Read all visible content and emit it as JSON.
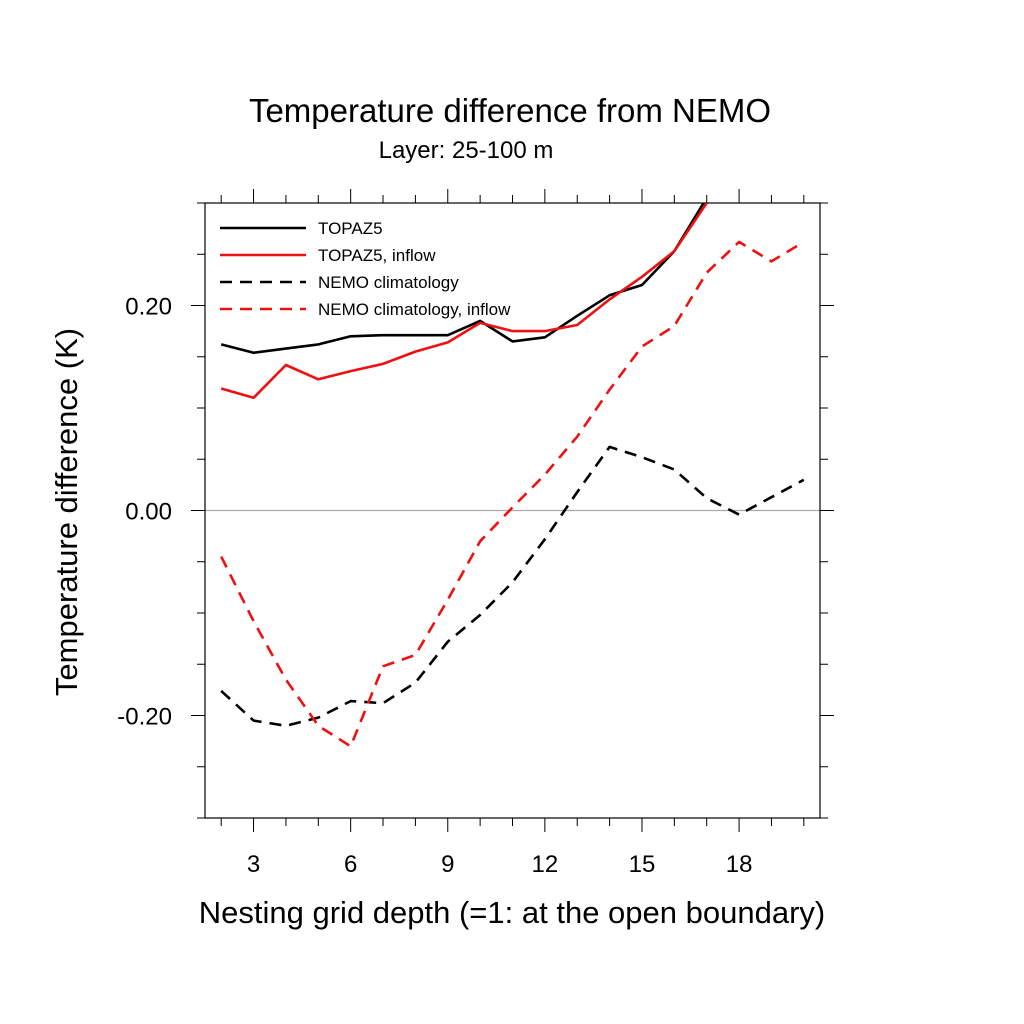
{
  "chart_data": {
    "type": "line",
    "title": "Temperature difference from NEMO",
    "subtitle": "Layer: 25-100 m",
    "xlabel": "Nesting grid depth (=1: at the open boundary)",
    "ylabel": "Temperature difference (K)",
    "xlim": [
      1.5,
      20.5
    ],
    "ylim": [
      -0.3,
      0.3
    ],
    "xticks": [
      3,
      6,
      9,
      12,
      15,
      18
    ],
    "xtick_labels": [
      "3",
      "6",
      "9",
      "12",
      "15",
      "18"
    ],
    "yticks": [
      -0.2,
      0.0,
      0.2
    ],
    "ytick_labels": [
      "-0.20",
      "0.00",
      "0.20"
    ],
    "reference_line": 0.0,
    "grid": false,
    "legend_position": "top-left",
    "x": [
      2,
      3,
      4,
      5,
      6,
      7,
      8,
      9,
      10,
      11,
      12,
      13,
      14,
      15,
      16,
      17,
      18,
      19,
      20
    ],
    "series": [
      {
        "name": "TOPAZ5",
        "color": "#000000",
        "dash": "solid",
        "values": [
          0.162,
          0.154,
          0.158,
          0.162,
          0.17,
          0.171,
          0.171,
          0.171,
          0.185,
          0.165,
          0.169,
          0.19,
          0.21,
          0.22,
          0.253,
          0.305,
          null,
          null,
          null
        ]
      },
      {
        "name": "TOPAZ5, inflow",
        "color": "#ee1111",
        "dash": "solid",
        "values": [
          0.119,
          0.11,
          0.142,
          0.128,
          0.136,
          0.143,
          0.155,
          0.164,
          0.183,
          0.175,
          0.175,
          0.181,
          0.206,
          0.228,
          0.253,
          0.3,
          null,
          null,
          null
        ]
      },
      {
        "name": "NEMO climatology",
        "color": "#000000",
        "dash": "dashed",
        "values": [
          -0.176,
          -0.205,
          -0.21,
          -0.202,
          -0.186,
          -0.188,
          -0.168,
          -0.128,
          -0.102,
          -0.07,
          -0.028,
          0.018,
          0.062,
          0.052,
          0.04,
          0.012,
          -0.004,
          0.013,
          0.03
        ]
      },
      {
        "name": "NEMO climatology, inflow",
        "color": "#ee1111",
        "dash": "dashed",
        "values": [
          -0.045,
          -0.108,
          -0.165,
          -0.21,
          -0.23,
          -0.152,
          -0.141,
          -0.087,
          -0.03,
          0.003,
          0.035,
          0.072,
          0.118,
          0.16,
          0.18,
          0.232,
          0.262,
          0.243,
          0.262
        ]
      }
    ]
  }
}
